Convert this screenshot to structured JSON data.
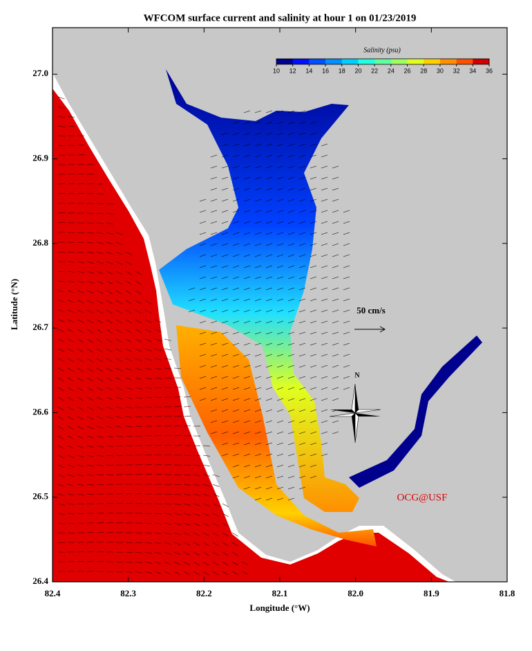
{
  "title": "WFCOM surface current and salinity at hour 1 on 01/23/2019",
  "x_axis": {
    "label": "Longitude (°W)",
    "lim": [
      82.4,
      81.8
    ],
    "ticks": [
      82.4,
      82.3,
      82.2,
      82.1,
      {
        "value": 82,
        "label": "82.0"
      },
      81.9,
      81.8
    ]
  },
  "y_axis": {
    "label": "Latitude (°N)",
    "lim": [
      26.4,
      27.055
    ],
    "ticks": [
      26.4,
      26.5,
      26.6,
      26.7,
      26.8,
      26.9,
      {
        "value": 27,
        "label": "27.0"
      }
    ]
  },
  "colorbar": {
    "label": "Salinity (psu)",
    "lim": [
      10,
      36
    ],
    "ticks": [
      10,
      12,
      14,
      16,
      18,
      20,
      22,
      24,
      26,
      28,
      30,
      32,
      34,
      36
    ],
    "colors": [
      "#00008f",
      "#0010ff",
      "#0050ff",
      "#0090ff",
      "#00d0ff",
      "#20ffdf",
      "#60ff9f",
      "#a0ff60",
      "#e0ff20",
      "#ffd000",
      "#ff9000",
      "#ff5000",
      "#d00000"
    ]
  },
  "scale_arrow": {
    "label": "50 cm/s"
  },
  "compass": {
    "label": "N"
  },
  "credit": "OCG@USF"
}
